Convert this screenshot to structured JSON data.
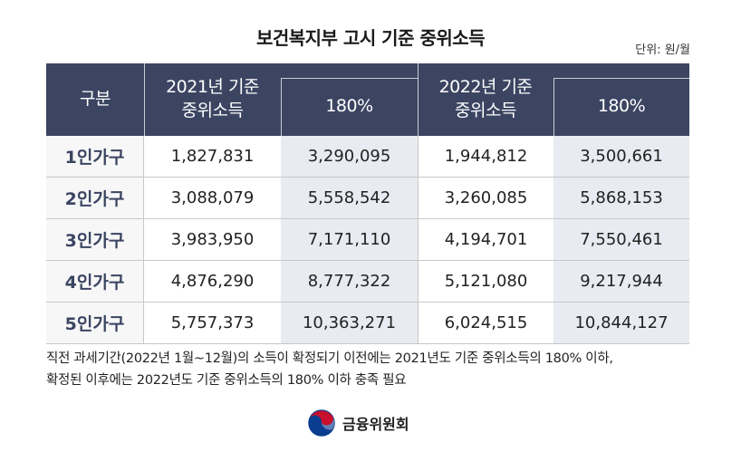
{
  "title": "보건복지부 고시 기준 중위소득",
  "unit": "단위: 원/월",
  "table": {
    "header": {
      "category": "구분",
      "col2021": "2021년 기준\n중위소득",
      "col2021_pct": "180%",
      "col2022": "2022년 기준\n중위소득",
      "col2022_pct": "180%"
    },
    "rows": [
      {
        "label": "1인가구",
        "v2021": "1,827,831",
        "p2021": "3,290,095",
        "v2022": "1,944,812",
        "p2022": "3,500,661"
      },
      {
        "label": "2인가구",
        "v2021": "3,088,079",
        "p2021": "5,558,542",
        "v2022": "3,260,085",
        "p2022": "5,868,153"
      },
      {
        "label": "3인가구",
        "v2021": "3,983,950",
        "p2021": "7,171,110",
        "v2022": "4,194,701",
        "p2022": "7,550,461"
      },
      {
        "label": "4인가구",
        "v2021": "4,876,290",
        "p2021": "8,777,322",
        "v2022": "5,121,080",
        "p2022": "9,217,944"
      },
      {
        "label": "5인가구",
        "v2021": "5,757,373",
        "p2021": "10,363,271",
        "v2022": "6,024,515",
        "p2022": "10,844,127"
      }
    ]
  },
  "note": {
    "line1": "직전 과세기간(2022년 1월~12월)의 소득이 확정되기 이전에는 2021년도 기준 중위소득의 180% 이하,",
    "line2": "확정된 이후에는 2022년도 기준 중위소득의 180% 이하 충족 필요"
  },
  "logo": {
    "icon": "taegeuk-emblem-icon",
    "text": "금융위원회",
    "colors": {
      "red": "#c8102e",
      "blue": "#0a3d8f"
    }
  },
  "colors": {
    "header_bg": "#3b4562",
    "shaded_col": "#e8ebf1"
  }
}
